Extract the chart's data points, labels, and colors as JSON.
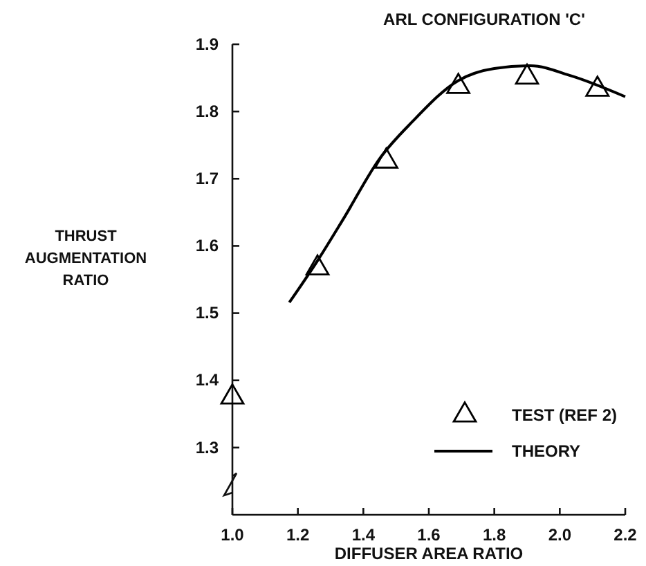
{
  "chart_data": {
    "type": "line",
    "title": "ARL CONFIGURATION 'C'",
    "xlabel": "DIFFUSER AREA RATIO",
    "ylabel": "THRUST AUGMENTATION RATIO",
    "xlim": [
      1.0,
      2.2
    ],
    "xticks": [
      {
        "value": 1.0,
        "label": "1.0"
      },
      1.2,
      1.4,
      1.6,
      1.8,
      {
        "value": 2.0,
        "label": "2.0"
      },
      2.2
    ],
    "ylim": [
      1.2,
      1.9
    ],
    "yticks": [
      1.3,
      1.4,
      1.5,
      1.6,
      1.7,
      1.8,
      1.9
    ],
    "grid": false,
    "legend": "bottom right",
    "series": [
      {
        "name": "TEST (REF 2)",
        "type": "scatter",
        "marker": "triangle",
        "color": "#000000",
        "x": [
          1.0,
          1.26,
          1.47,
          1.69,
          1.9,
          2.115
        ],
        "values": [
          1.375,
          1.567,
          1.726,
          1.837,
          1.851,
          1.833
        ]
      },
      {
        "name": "THEORY",
        "marker": "none",
        "line_style": "solid",
        "color": "#000000",
        "x": [
          1.174,
          1.26,
          1.34,
          1.45,
          1.55,
          1.69,
          1.8,
          1.91,
          2.035,
          2.2
        ],
        "values": [
          1.516,
          1.578,
          1.641,
          1.73,
          1.785,
          1.846,
          1.864,
          1.868,
          1.853,
          1.822
        ]
      }
    ]
  }
}
